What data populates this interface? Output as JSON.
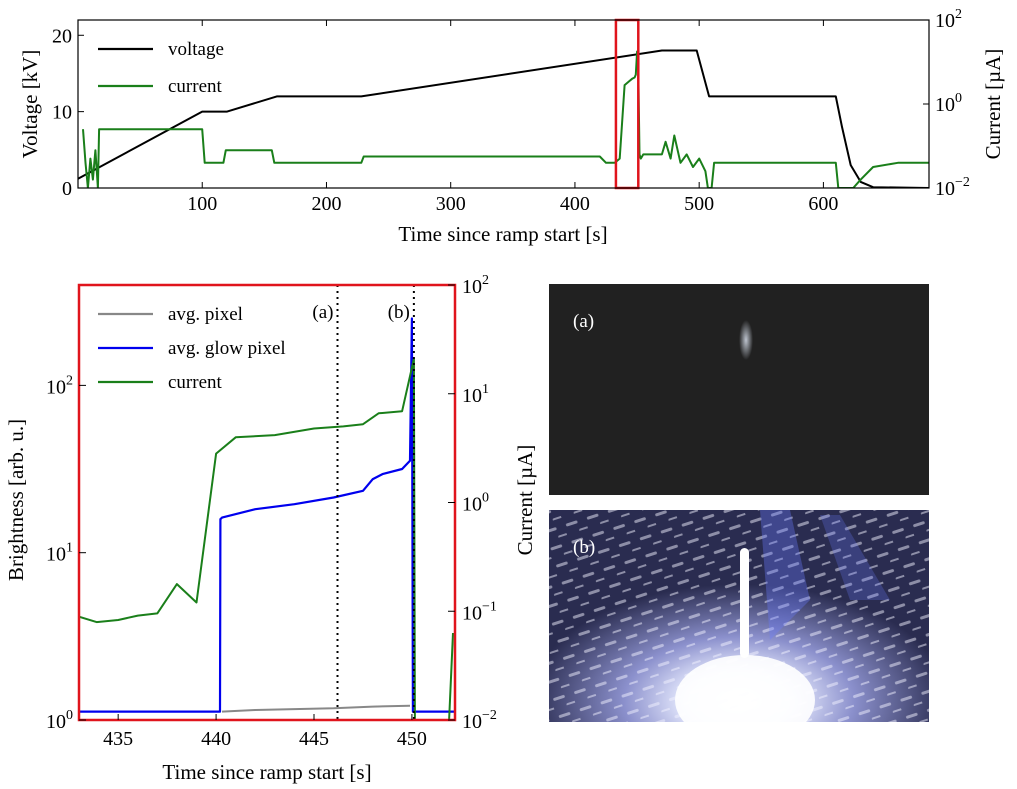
{
  "colors": {
    "voltage": "#000000",
    "current": "#1a7f1a",
    "avg_pixel": "#888888",
    "glow_pixel": "#0000ee",
    "highlight": "#e0141c"
  },
  "chart_data": [
    {
      "type": "line",
      "id": "top",
      "xlabel": "Time since ramp start [s]",
      "ylabel": "Voltage [kV]",
      "y2label": "Current [µA]",
      "xlim": [
        0,
        685
      ],
      "ylim": [
        0,
        22
      ],
      "y2lim_log": [
        -2,
        2
      ],
      "xticks": [
        100,
        200,
        300,
        400,
        500,
        600
      ],
      "yticks": [
        0,
        10,
        20
      ],
      "y2ticks": [
        {
          "base": "10",
          "exp": "−2",
          "v": -2
        },
        {
          "base": "10",
          "exp": "0",
          "v": 0
        },
        {
          "base": "10",
          "exp": "2",
          "v": 2
        }
      ],
      "legend": {
        "position": "top-left",
        "entries": [
          "voltage",
          "current"
        ]
      },
      "highlight_range": [
        433,
        451
      ],
      "series": [
        {
          "name": "voltage",
          "axis": "left",
          "x": [
            0,
            100,
            120,
            160,
            228,
            470,
            498,
            508,
            610,
            615,
            622,
            630,
            640,
            685
          ],
          "y": [
            1.2,
            10,
            10,
            12,
            12,
            18,
            18,
            12,
            12,
            8,
            3,
            0.8,
            0.1,
            0
          ]
        },
        {
          "name": "current",
          "axis": "right_log10",
          "x": [
            4,
            6,
            8,
            10,
            12,
            14,
            16,
            17,
            100,
            102,
            117,
            119,
            156,
            158,
            228,
            230,
            420,
            425,
            432,
            436,
            440,
            444,
            446,
            448,
            449,
            450,
            451,
            452,
            453,
            455,
            470,
            473,
            477,
            480,
            485,
            490,
            495,
            500,
            505,
            507,
            510,
            512,
            610,
            612,
            618,
            624,
            630,
            640,
            660,
            685
          ],
          "y": [
            -0.6,
            -1.4,
            -2,
            -1.3,
            -1.8,
            -1.1,
            -2,
            -0.6,
            -0.6,
            -1.4,
            -1.4,
            -1.1,
            -1.1,
            -1.4,
            -1.4,
            -1.25,
            -1.25,
            -1.4,
            -1.4,
            -1.3,
            0.45,
            0.55,
            0.6,
            0.63,
            0.7,
            1.25,
            0.8,
            -1.2,
            -1.3,
            -1.2,
            -1.2,
            -0.9,
            -1.3,
            -0.75,
            -1.4,
            -1.2,
            -1.5,
            -1.3,
            -1.6,
            -2,
            -2,
            -1.4,
            -1.4,
            -2,
            -2,
            -2,
            -1.8,
            -1.5,
            -1.4,
            -1.4
          ]
        }
      ]
    },
    {
      "type": "line",
      "id": "zoom",
      "xlabel": "Time since ramp start [s]",
      "ylabel": "Brightness [arb. u.]",
      "y2label": "Current [µA]",
      "xlim": [
        433,
        452.2
      ],
      "ylim_log": [
        0,
        2.6
      ],
      "y2lim_log": [
        -2,
        2
      ],
      "xticks": [
        435,
        440,
        445,
        450
      ],
      "yticks": [
        {
          "base": "10",
          "exp": "0",
          "v": 0
        },
        {
          "base": "10",
          "exp": "1",
          "v": 1
        },
        {
          "base": "10",
          "exp": "2",
          "v": 2
        }
      ],
      "y2ticks": [
        {
          "base": "10",
          "exp": "−2",
          "v": -2
        },
        {
          "base": "10",
          "exp": "−1",
          "v": -1
        },
        {
          "base": "10",
          "exp": "0",
          "v": 0
        },
        {
          "base": "10",
          "exp": "1",
          "v": 1
        },
        {
          "base": "10",
          "exp": "2",
          "v": 2
        }
      ],
      "legend": {
        "position": "top-left",
        "entries": [
          "avg. pixel",
          "avg. glow pixel",
          "current"
        ]
      },
      "annotations": [
        {
          "label": "(a)",
          "x": 446.2
        },
        {
          "label": "(b)",
          "x": 450.1
        }
      ],
      "series": [
        {
          "name": "avg. pixel",
          "axis": "left_log10",
          "x": [
            440.3,
            442,
            444,
            446,
            448,
            449.9
          ],
          "y": [
            0.05,
            0.06,
            0.065,
            0.07,
            0.08,
            0.085
          ]
        },
        {
          "name": "avg. glow pixel",
          "axis": "left_log10",
          "x": [
            433,
            440.2,
            440.22,
            440.3,
            442,
            444,
            446,
            447.5,
            448,
            448.5,
            449.5,
            449.9,
            450.0,
            450.05,
            450.15,
            452.2
          ],
          "y": [
            0.05,
            0.05,
            1.2,
            1.21,
            1.26,
            1.29,
            1.33,
            1.37,
            1.44,
            1.47,
            1.5,
            1.55,
            2.4,
            0.05,
            0.05,
            0.05
          ]
        },
        {
          "name": "current",
          "axis": "right_log10",
          "x": [
            433,
            433.9,
            435,
            436,
            437,
            438,
            439,
            440,
            441,
            443,
            445,
            446.5,
            447.5,
            448.3,
            449.5,
            450.1,
            450.15,
            451.9,
            452.1
          ],
          "y": [
            -1.05,
            -1.1,
            -1.08,
            -1.04,
            -1.02,
            -0.75,
            -0.92,
            0.45,
            0.6,
            0.62,
            0.68,
            0.7,
            0.72,
            0.82,
            0.84,
            1.32,
            -2,
            -2,
            -1.2
          ]
        }
      ]
    }
  ],
  "photos": [
    {
      "label": "(a)"
    },
    {
      "label": "(b)"
    }
  ]
}
